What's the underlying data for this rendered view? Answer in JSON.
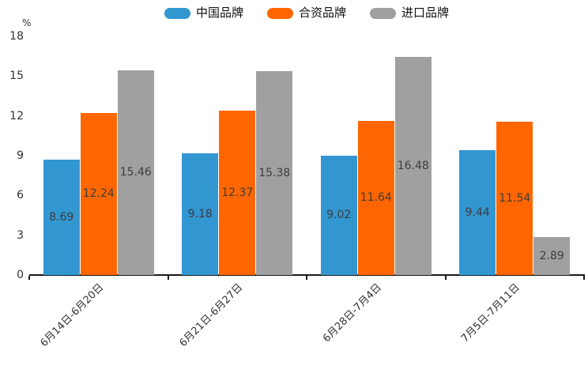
{
  "chart_data": {
    "type": "bar",
    "title": "",
    "unit_label": "%",
    "categories": [
      "6月14日-6月20日",
      "6月21日-6月27日",
      "6月28日-7月4日",
      "7月5日-7月11日"
    ],
    "series": [
      {
        "name": "中国品牌",
        "color": "#3296D1",
        "values": [
          8.69,
          9.18,
          9.02,
          9.44
        ]
      },
      {
        "name": "合资品牌",
        "color": "#FF6600",
        "values": [
          12.24,
          12.37,
          11.64,
          11.54
        ]
      },
      {
        "name": "进口品牌",
        "color": "#A0A0A0",
        "values": [
          15.46,
          15.38,
          16.48,
          2.89
        ]
      }
    ],
    "ylim": [
      0,
      18
    ],
    "yticks": [
      0,
      3,
      6,
      9,
      12,
      15,
      18
    ],
    "value_labels": "inside-center",
    "legend_position": "top-center",
    "grid": false,
    "axis_color": "#1a1a1a",
    "label_color": "#3d3d3d"
  }
}
